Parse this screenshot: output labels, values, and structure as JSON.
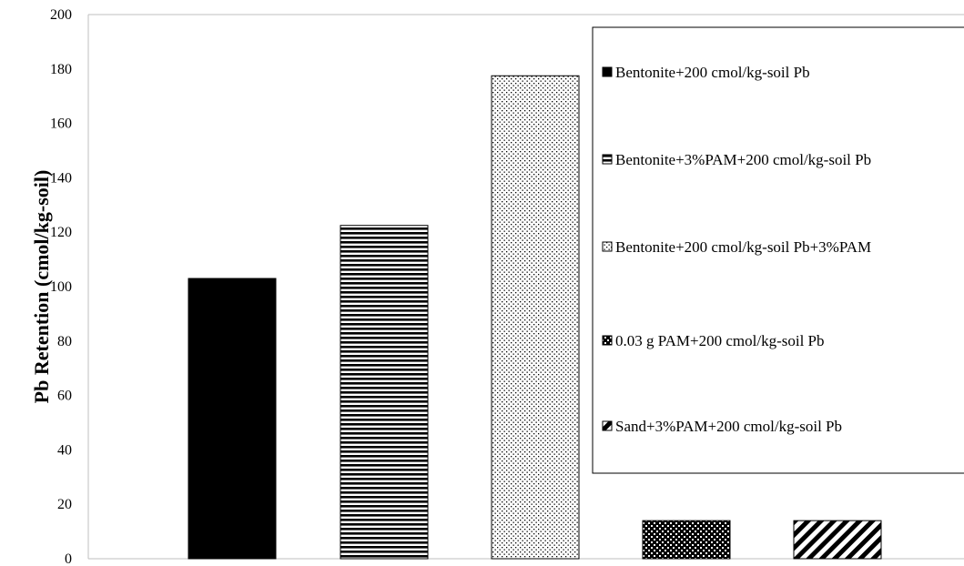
{
  "chart_data": {
    "type": "bar",
    "ylabel": "Pb Retention (cmol/kg-soil)",
    "xlabel": "",
    "ylim": [
      0,
      200
    ],
    "yticks": [
      0,
      20,
      40,
      60,
      80,
      100,
      120,
      140,
      160,
      180,
      200
    ],
    "grid": false,
    "legend_position": "top-right",
    "series": [
      {
        "name": "Bentonite+200 cmol/kg-soil Pb",
        "value": 103,
        "pattern": "solid"
      },
      {
        "name": "Bentonite+3%PAM+200 cmol/kg-soil Pb",
        "value": 122.5,
        "pattern": "horizontal-stripes"
      },
      {
        "name": "Bentonite+200 cmol/kg-soil Pb+3%PAM",
        "value": 177.5,
        "pattern": "dots"
      },
      {
        "name": "0.03 g PAM+200 cmol/kg-soil Pb",
        "value": 14,
        "pattern": "checker"
      },
      {
        "name": "Sand+3%PAM+200 cmol/kg-soil Pb",
        "value": 14,
        "pattern": "diagonal-stripes"
      }
    ],
    "colors": {
      "bar": "#000000",
      "background": "#ffffff",
      "axis": "#bfbfbf"
    }
  }
}
